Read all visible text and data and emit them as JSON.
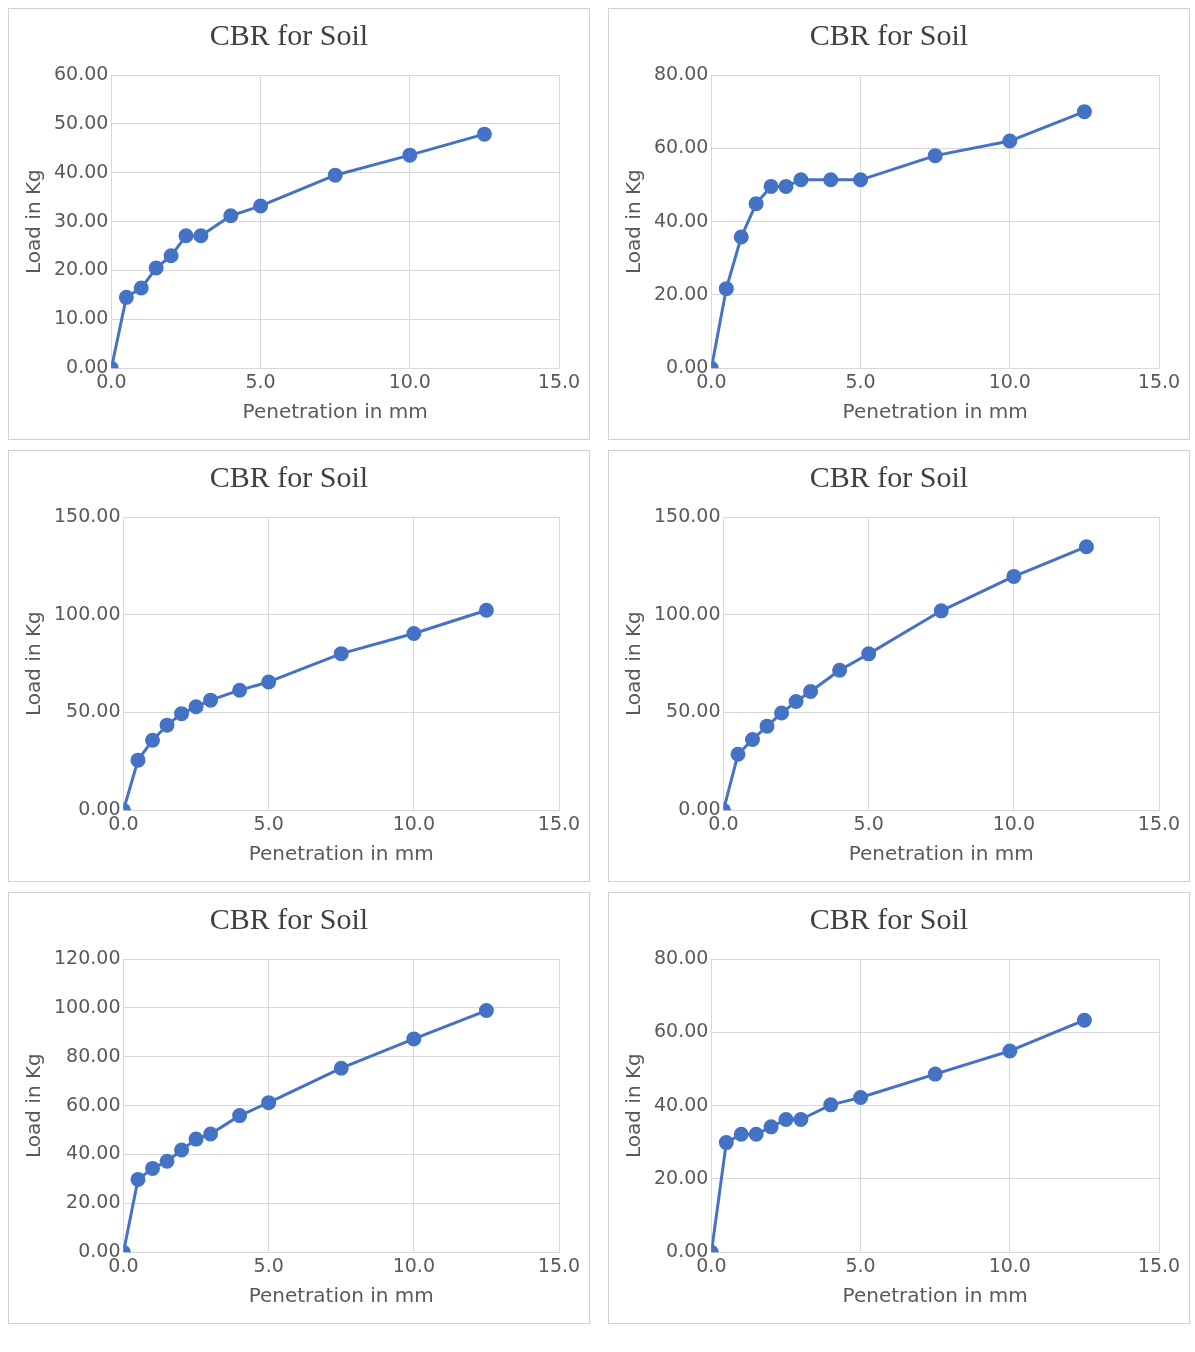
{
  "chart_data": [
    {
      "type": "line",
      "title": "CBR for Soil",
      "xlabel": "Penetration in mm",
      "ylabel": "Load in Kg",
      "x": [
        0,
        0.5,
        1,
        1.5,
        2,
        2.5,
        3,
        4,
        5,
        7.5,
        10,
        12.5
      ],
      "series": [
        {
          "color": "#4472c4",
          "values": [
            0,
            14.5,
            16.4,
            20.5,
            23,
            27.1,
            27.1,
            31.2,
            33.2,
            39.5,
            43.6,
            47.9
          ]
        }
      ],
      "xlim": [
        0,
        15
      ],
      "xticks": [
        {
          "value": 0,
          "label": "0.0"
        },
        {
          "value": 5,
          "label": "5.0"
        },
        {
          "value": 10,
          "label": "10.0"
        },
        {
          "value": 15,
          "label": "15.0"
        }
      ],
      "ylim": [
        0,
        60
      ],
      "yticks": [
        {
          "value": 0,
          "label": "0.00"
        },
        {
          "value": 10,
          "label": "10.00"
        },
        {
          "value": 20,
          "label": "20.00"
        },
        {
          "value": 30,
          "label": "30.00"
        },
        {
          "value": 40,
          "label": "40.00"
        },
        {
          "value": 50,
          "label": "50.00"
        },
        {
          "value": 60,
          "label": "60.00"
        }
      ],
      "grid": true,
      "marker": "circle"
    },
    {
      "type": "line",
      "title": "CBR for Soil",
      "xlabel": "Penetration in mm",
      "ylabel": "Load in Kg",
      "x": [
        0,
        0.5,
        1,
        1.5,
        2,
        2.5,
        3,
        4,
        5,
        7.5,
        10,
        12.5
      ],
      "series": [
        {
          "color": "#4472c4",
          "values": [
            0,
            21.7,
            35.8,
            44.9,
            49.6,
            49.6,
            51.4,
            51.4,
            51.4,
            58,
            62,
            70
          ]
        }
      ],
      "xlim": [
        0,
        15
      ],
      "xticks": [
        {
          "value": 0,
          "label": "0.0"
        },
        {
          "value": 5,
          "label": "5.0"
        },
        {
          "value": 10,
          "label": "10.0"
        },
        {
          "value": 15,
          "label": "15.0"
        }
      ],
      "ylim": [
        0,
        80
      ],
      "yticks": [
        {
          "value": 0,
          "label": "0.00"
        },
        {
          "value": 20,
          "label": "20.00"
        },
        {
          "value": 40,
          "label": "40.00"
        },
        {
          "value": 60,
          "label": "60.00"
        },
        {
          "value": 80,
          "label": "80.00"
        }
      ],
      "grid": true,
      "marker": "circle"
    },
    {
      "type": "line",
      "title": "CBR for Soil",
      "xlabel": "Penetration in mm",
      "ylabel": "Load in Kg",
      "x": [
        0,
        0.5,
        1,
        1.5,
        2,
        2.5,
        3,
        4,
        5,
        7.5,
        10,
        12.5
      ],
      "series": [
        {
          "color": "#4472c4",
          "values": [
            0,
            25.6,
            35.8,
            43.5,
            49.4,
            52.9,
            56.3,
            61.4,
            65.6,
            80.1,
            90.4,
            102.3
          ]
        }
      ],
      "xlim": [
        0,
        15
      ],
      "xticks": [
        {
          "value": 0,
          "label": "0.0"
        },
        {
          "value": 5,
          "label": "5.0"
        },
        {
          "value": 10,
          "label": "10.0"
        },
        {
          "value": 15,
          "label": "15.0"
        }
      ],
      "ylim": [
        0,
        150
      ],
      "yticks": [
        {
          "value": 0,
          "label": "0.00"
        },
        {
          "value": 50,
          "label": "50.00"
        },
        {
          "value": 100,
          "label": "100.00"
        },
        {
          "value": 150,
          "label": "150.00"
        }
      ],
      "grid": true,
      "marker": "circle"
    },
    {
      "type": "line",
      "title": "CBR for Soil",
      "xlabel": "Penetration in mm",
      "ylabel": "Load in Kg",
      "x": [
        0,
        0.5,
        1,
        1.5,
        2,
        2.5,
        3,
        4,
        5,
        7.5,
        10,
        12.5
      ],
      "series": [
        {
          "color": "#4472c4",
          "values": [
            0,
            28.6,
            36.2,
            43,
            49.7,
            55.6,
            60.7,
            71.6,
            80,
            102,
            119.6,
            134.8
          ]
        }
      ],
      "xlim": [
        0,
        15
      ],
      "xticks": [
        {
          "value": 0,
          "label": "0.0"
        },
        {
          "value": 5,
          "label": "5.0"
        },
        {
          "value": 10,
          "label": "10.0"
        },
        {
          "value": 15,
          "label": "15.0"
        }
      ],
      "ylim": [
        0,
        150
      ],
      "yticks": [
        {
          "value": 0,
          "label": "0.00"
        },
        {
          "value": 50,
          "label": "50.00"
        },
        {
          "value": 100,
          "label": "100.00"
        },
        {
          "value": 150,
          "label": "150.00"
        }
      ],
      "grid": true,
      "marker": "circle"
    },
    {
      "type": "line",
      "title": "CBR for Soil",
      "xlabel": "Penetration in mm",
      "ylabel": "Load in Kg",
      "x": [
        0,
        0.5,
        1,
        1.5,
        2,
        2.5,
        3,
        4,
        5,
        7.5,
        10,
        12.5
      ],
      "series": [
        {
          "color": "#4472c4",
          "values": [
            0,
            29.8,
            34.3,
            37.2,
            41.8,
            46.3,
            48.4,
            55.9,
            61.2,
            75.3,
            87.3,
            98.9
          ]
        }
      ],
      "xlim": [
        0,
        15
      ],
      "xticks": [
        {
          "value": 0,
          "label": "0.0"
        },
        {
          "value": 5,
          "label": "5.0"
        },
        {
          "value": 10,
          "label": "10.0"
        },
        {
          "value": 15,
          "label": "15.0"
        }
      ],
      "ylim": [
        0,
        120
      ],
      "yticks": [
        {
          "value": 0,
          "label": "0.00"
        },
        {
          "value": 20,
          "label": "20.00"
        },
        {
          "value": 40,
          "label": "40.00"
        },
        {
          "value": 60,
          "label": "60.00"
        },
        {
          "value": 80,
          "label": "80.00"
        },
        {
          "value": 100,
          "label": "100.00"
        },
        {
          "value": 120,
          "label": "120.00"
        }
      ],
      "grid": true,
      "marker": "circle"
    },
    {
      "type": "line",
      "title": "CBR for Soil",
      "xlabel": "Penetration in mm",
      "ylabel": "Load in Kg",
      "x": [
        0,
        0.5,
        1,
        1.5,
        2,
        2.5,
        3,
        4,
        5,
        7.5,
        10,
        12.5
      ],
      "series": [
        {
          "color": "#4472c4",
          "values": [
            0,
            29.9,
            32.2,
            32.2,
            34.2,
            36.2,
            36.2,
            40.2,
            42.2,
            48.6,
            54.9,
            63.3
          ]
        }
      ],
      "xlim": [
        0,
        15
      ],
      "xticks": [
        {
          "value": 0,
          "label": "0.0"
        },
        {
          "value": 5,
          "label": "5.0"
        },
        {
          "value": 10,
          "label": "10.0"
        },
        {
          "value": 15,
          "label": "15.0"
        }
      ],
      "ylim": [
        0,
        80
      ],
      "yticks": [
        {
          "value": 0,
          "label": "0.00"
        },
        {
          "value": 20,
          "label": "20.00"
        },
        {
          "value": 40,
          "label": "40.00"
        },
        {
          "value": 60,
          "label": "60.00"
        },
        {
          "value": 80,
          "label": "80.00"
        }
      ],
      "grid": true,
      "marker": "circle"
    }
  ]
}
